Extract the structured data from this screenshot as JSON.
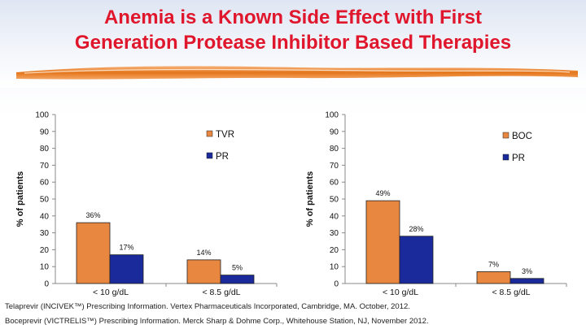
{
  "slide": {
    "title_line1": "Anemia is a Known Side Effect with First",
    "title_line2": "Generation Protease Inhibitor Based Therapies",
    "title_color": "#e0172c",
    "accent_bar_color": "#e4761c"
  },
  "chart_data": [
    {
      "type": "bar",
      "ylabel": "% of patients",
      "ylim": [
        0,
        100
      ],
      "yticks": [
        0,
        10,
        20,
        30,
        40,
        50,
        60,
        70,
        80,
        90,
        100
      ],
      "categories": [
        "< 10 g/dL",
        "< 8.5 g/dL"
      ],
      "series": [
        {
          "name": "TVR",
          "values": [
            36,
            14
          ],
          "labels": [
            "36%",
            "14%"
          ],
          "color": "#e8873f"
        },
        {
          "name": "PR",
          "values": [
            17,
            5
          ],
          "labels": [
            "17%",
            "5%"
          ],
          "color": "#1a2a9a"
        }
      ],
      "grid": false,
      "legend": "top-right"
    },
    {
      "type": "bar",
      "ylabel": "% of patients",
      "ylim": [
        0,
        100
      ],
      "yticks": [
        0,
        10,
        20,
        30,
        40,
        50,
        60,
        70,
        80,
        90,
        100
      ],
      "categories": [
        "< 10 g/dL",
        "< 8.5 g/dL"
      ],
      "series": [
        {
          "name": "BOC",
          "values": [
            49,
            7
          ],
          "labels": [
            "49%",
            "7%"
          ],
          "color": "#e8873f"
        },
        {
          "name": "PR",
          "values": [
            28,
            3
          ],
          "labels": [
            "28%",
            "3%"
          ],
          "color": "#1a2a9a"
        }
      ],
      "grid": false,
      "legend": "top-right"
    }
  ],
  "footnotes": {
    "line1": "Telaprevir (INCIVEK™) Prescribing Information. Vertex Pharmaceuticals Incorporated, Cambridge, MA. October, 2012.",
    "line2": "Boceprevir (VICTRELIS™) Prescribing Information. Merck Sharp & Dohme Corp., Whitehouse Station, NJ, November 2012."
  }
}
